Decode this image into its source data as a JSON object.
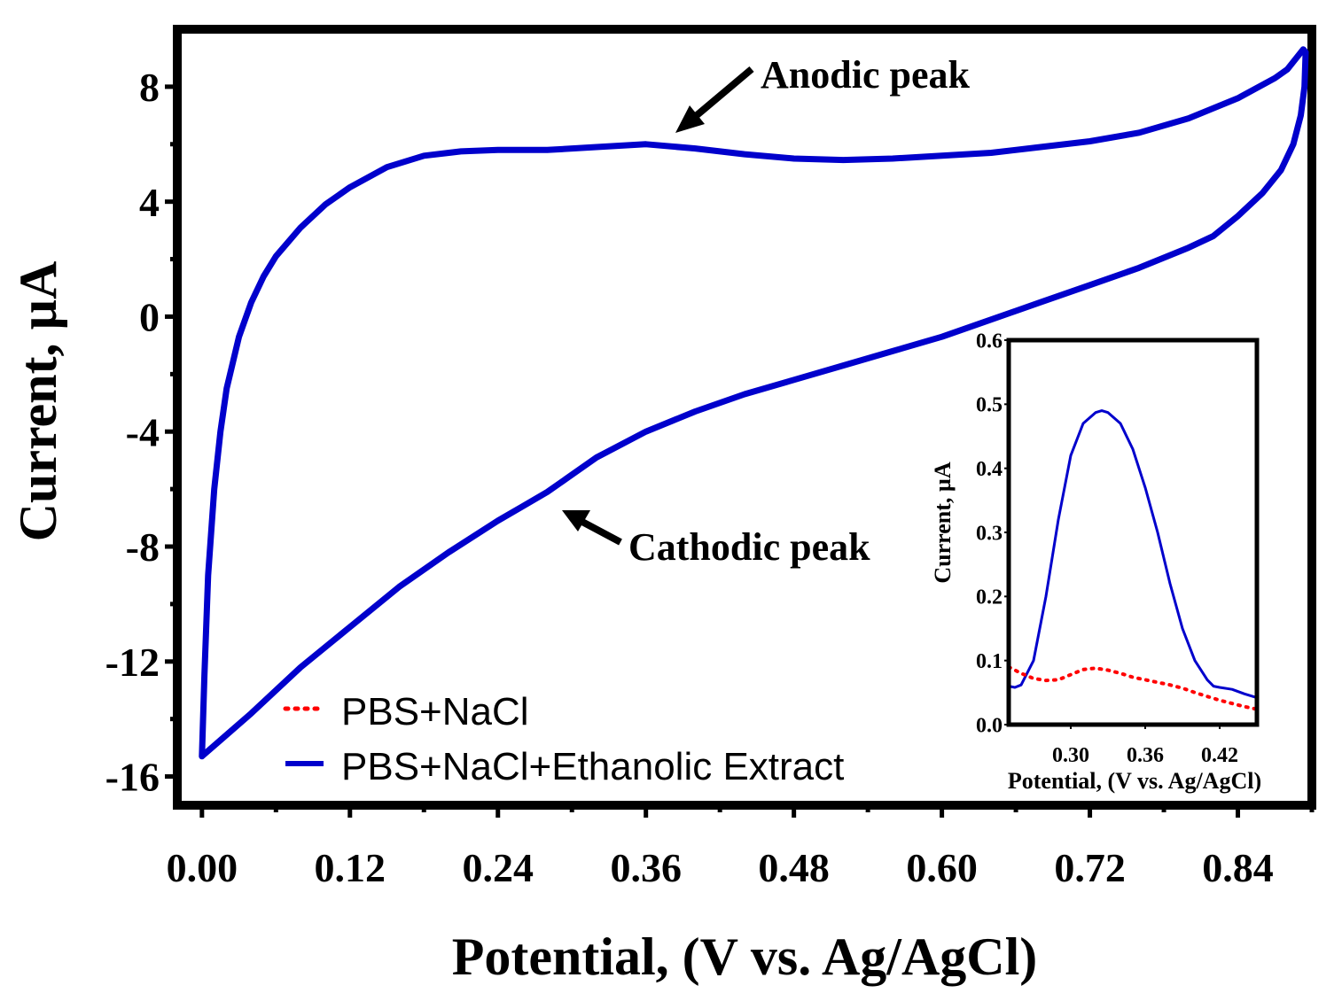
{
  "chart_data": [
    {
      "type": "line",
      "title": "",
      "xlabel": "Potential, (V vs. Ag/AgCl)",
      "ylabel": "Current, µA",
      "xlim": [
        -0.02,
        0.9
      ],
      "ylim": [
        -17,
        10
      ],
      "x_ticks": [
        0.0,
        0.12,
        0.24,
        0.36,
        0.48,
        0.6,
        0.72,
        0.84
      ],
      "x_tick_labels": [
        "0.00",
        "0.12",
        "0.24",
        "0.36",
        "0.48",
        "0.60",
        "0.72",
        "0.84"
      ],
      "y_ticks": [
        8,
        4,
        0,
        -4,
        -8,
        -12,
        -16
      ],
      "y_tick_labels": [
        "8",
        "4",
        "0",
        "-4",
        "-8",
        "-12",
        "-16"
      ],
      "legend": {
        "position": "bottom-left",
        "entries": [
          {
            "label": "PBS+NaCl",
            "color": "#ff0000",
            "style": "dotted"
          },
          {
            "label": "PBS+NaCl+Ethanolic Extract",
            "color": "#0000cc",
            "style": "solid"
          }
        ]
      },
      "annotations": [
        {
          "text": "Anodic peak",
          "x": 0.39,
          "y": 6.0
        },
        {
          "text": "Cathodic peak",
          "x": 0.3,
          "y": -6.6
        }
      ],
      "series": [
        {
          "name": "PBS+NaCl+Ethanolic Extract",
          "color": "#0000cc",
          "style": "solid",
          "points": [
            [
              0.0,
              -15.3
            ],
            [
              0.002,
              -12.5
            ],
            [
              0.005,
              -9.0
            ],
            [
              0.01,
              -6.0
            ],
            [
              0.015,
              -4.0
            ],
            [
              0.02,
              -2.5
            ],
            [
              0.03,
              -0.7
            ],
            [
              0.04,
              0.5
            ],
            [
              0.05,
              1.4
            ],
            [
              0.06,
              2.1
            ],
            [
              0.08,
              3.1
            ],
            [
              0.1,
              3.9
            ],
            [
              0.12,
              4.5
            ],
            [
              0.15,
              5.2
            ],
            [
              0.18,
              5.6
            ],
            [
              0.21,
              5.75
            ],
            [
              0.24,
              5.8
            ],
            [
              0.28,
              5.8
            ],
            [
              0.32,
              5.9
            ],
            [
              0.36,
              6.0
            ],
            [
              0.4,
              5.85
            ],
            [
              0.44,
              5.65
            ],
            [
              0.48,
              5.5
            ],
            [
              0.52,
              5.45
            ],
            [
              0.56,
              5.5
            ],
            [
              0.6,
              5.6
            ],
            [
              0.64,
              5.7
            ],
            [
              0.68,
              5.9
            ],
            [
              0.72,
              6.1
            ],
            [
              0.76,
              6.4
            ],
            [
              0.8,
              6.9
            ],
            [
              0.84,
              7.6
            ],
            [
              0.87,
              8.3
            ],
            [
              0.88,
              8.6
            ],
            [
              0.893,
              9.3
            ],
            [
              0.895,
              9.2
            ],
            [
              0.894,
              8.0
            ],
            [
              0.891,
              7.0
            ],
            [
              0.885,
              6.0
            ],
            [
              0.875,
              5.1
            ],
            [
              0.86,
              4.3
            ],
            [
              0.84,
              3.5
            ],
            [
              0.82,
              2.8
            ],
            [
              0.8,
              2.4
            ],
            [
              0.76,
              1.7
            ],
            [
              0.72,
              1.1
            ],
            [
              0.68,
              0.5
            ],
            [
              0.64,
              -0.1
            ],
            [
              0.6,
              -0.7
            ],
            [
              0.56,
              -1.2
            ],
            [
              0.52,
              -1.7
            ],
            [
              0.48,
              -2.2
            ],
            [
              0.44,
              -2.7
            ],
            [
              0.4,
              -3.3
            ],
            [
              0.36,
              -4.0
            ],
            [
              0.32,
              -4.9
            ],
            [
              0.3,
              -5.5
            ],
            [
              0.28,
              -6.1
            ],
            [
              0.26,
              -6.6
            ],
            [
              0.24,
              -7.1
            ],
            [
              0.2,
              -8.2
            ],
            [
              0.16,
              -9.4
            ],
            [
              0.12,
              -10.8
            ],
            [
              0.08,
              -12.2
            ],
            [
              0.04,
              -13.8
            ],
            [
              0.0,
              -15.3
            ]
          ]
        }
      ]
    },
    {
      "type": "line",
      "title": "",
      "xlabel": "Potential, (V vs. Ag/AgCl)",
      "ylabel": "Current, µA",
      "xlim": [
        0.25,
        0.45
      ],
      "ylim": [
        0.0,
        0.6
      ],
      "x_ticks": [
        0.3,
        0.36,
        0.42
      ],
      "x_tick_labels": [
        "0.30",
        "0.36",
        "0.42"
      ],
      "y_ticks": [
        0.0,
        0.1,
        0.2,
        0.3,
        0.4,
        0.5,
        0.6
      ],
      "y_tick_labels": [
        "0.0",
        "0.1",
        "0.2",
        "0.3",
        "0.4",
        "0.5",
        "0.6"
      ],
      "series": [
        {
          "name": "PBS+NaCl+Ethanolic Extract",
          "color": "#0000cc",
          "style": "solid",
          "points": [
            [
              0.25,
              0.06
            ],
            [
              0.255,
              0.058
            ],
            [
              0.26,
              0.062
            ],
            [
              0.27,
              0.1
            ],
            [
              0.28,
              0.2
            ],
            [
              0.29,
              0.32
            ],
            [
              0.3,
              0.42
            ],
            [
              0.31,
              0.47
            ],
            [
              0.32,
              0.487
            ],
            [
              0.325,
              0.49
            ],
            [
              0.33,
              0.487
            ],
            [
              0.34,
              0.47
            ],
            [
              0.35,
              0.43
            ],
            [
              0.36,
              0.37
            ],
            [
              0.37,
              0.3
            ],
            [
              0.38,
              0.22
            ],
            [
              0.39,
              0.15
            ],
            [
              0.4,
              0.1
            ],
            [
              0.41,
              0.07
            ],
            [
              0.415,
              0.06
            ],
            [
              0.42,
              0.058
            ],
            [
              0.43,
              0.055
            ],
            [
              0.44,
              0.048
            ],
            [
              0.45,
              0.042
            ]
          ]
        },
        {
          "name": "PBS+NaCl",
          "color": "#ff0000",
          "style": "dotted",
          "points": [
            [
              0.25,
              0.09
            ],
            [
              0.26,
              0.08
            ],
            [
              0.27,
              0.072
            ],
            [
              0.28,
              0.069
            ],
            [
              0.29,
              0.07
            ],
            [
              0.3,
              0.078
            ],
            [
              0.31,
              0.086
            ],
            [
              0.32,
              0.088
            ],
            [
              0.33,
              0.085
            ],
            [
              0.34,
              0.08
            ],
            [
              0.35,
              0.074
            ],
            [
              0.36,
              0.07
            ],
            [
              0.37,
              0.066
            ],
            [
              0.38,
              0.062
            ],
            [
              0.39,
              0.057
            ],
            [
              0.4,
              0.05
            ],
            [
              0.41,
              0.044
            ],
            [
              0.42,
              0.038
            ],
            [
              0.43,
              0.033
            ],
            [
              0.44,
              0.028
            ],
            [
              0.45,
              0.024
            ]
          ]
        }
      ]
    }
  ]
}
